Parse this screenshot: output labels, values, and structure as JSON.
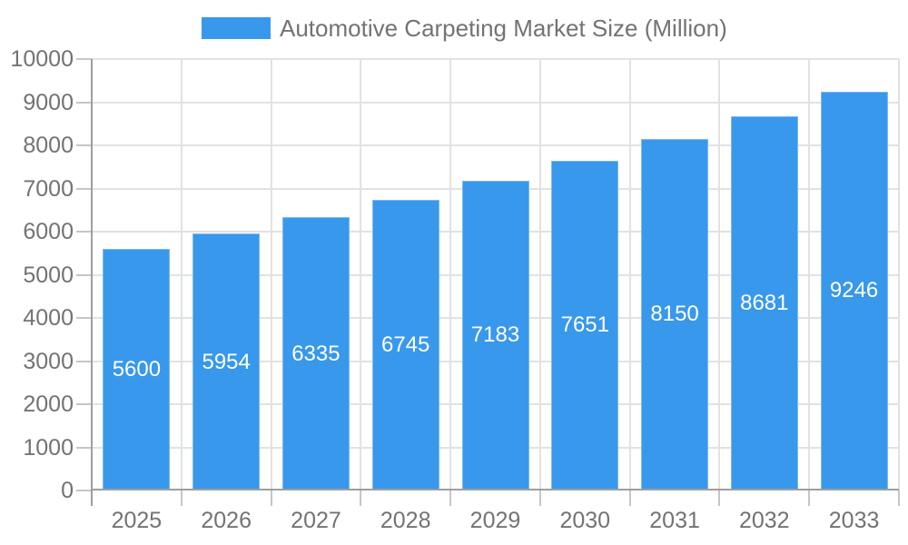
{
  "chart_data": {
    "type": "bar",
    "title": "Automotive Carpeting Market Size (Million)",
    "categories": [
      "2025",
      "2026",
      "2027",
      "2028",
      "2029",
      "2030",
      "2031",
      "2032",
      "2033"
    ],
    "values": [
      5600,
      5954,
      6335,
      6745,
      7183,
      7651,
      8150,
      8681,
      9246
    ],
    "series_name": "Automotive Carpeting Market Size (Million)",
    "xlabel": "",
    "ylabel": "",
    "ylim": [
      0,
      10000
    ],
    "yticks": [
      0,
      1000,
      2000,
      3000,
      4000,
      5000,
      6000,
      7000,
      8000,
      9000,
      10000
    ],
    "grid": true,
    "legend_position": "top",
    "value_labels": "inside-center",
    "colors": {
      "bar_fill": "#3898EC",
      "bar_border": "#7FB9F0",
      "value_label": "#FFFFFF",
      "axis_text": "#737373",
      "legend_text": "#737373",
      "gridline": "#E2E2E2",
      "axis_line": "#9E9E9E",
      "tick": "#C6C6C6",
      "background": "#FFFFFF"
    }
  }
}
